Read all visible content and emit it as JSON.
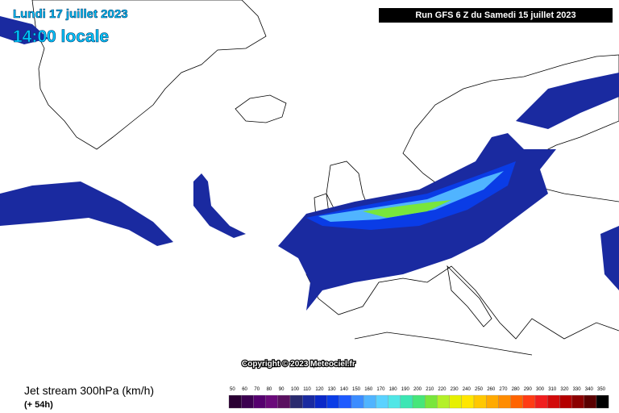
{
  "header": {
    "date": "Lundi 17 juillet 2023",
    "time": "14:00 locale",
    "run": "Run GFS 6 Z du Samedi 15 juillet 2023"
  },
  "copyright": "Copyright © 2023 Meteociel.fr",
  "legend": {
    "title": "Jet stream 300hPa (km/h)",
    "lead": "(+ 54h)",
    "scale": [
      {
        "label": "50",
        "color": "#2a0033"
      },
      {
        "label": "60",
        "color": "#3c0050"
      },
      {
        "label": "70",
        "color": "#55006e"
      },
      {
        "label": "80",
        "color": "#6a0a7a"
      },
      {
        "label": "90",
        "color": "#5a1060"
      },
      {
        "label": "100",
        "color": "#2a2a6e"
      },
      {
        "label": "110",
        "color": "#1a2aa0"
      },
      {
        "label": "120",
        "color": "#0a28c8"
      },
      {
        "label": "130",
        "color": "#0a3ce6"
      },
      {
        "label": "140",
        "color": "#1e5aff"
      },
      {
        "label": "150",
        "color": "#3c8cff"
      },
      {
        "label": "160",
        "color": "#50b4ff"
      },
      {
        "label": "170",
        "color": "#5ad2ff"
      },
      {
        "label": "180",
        "color": "#50e6e6"
      },
      {
        "label": "190",
        "color": "#3ce6b4"
      },
      {
        "label": "200",
        "color": "#46e67a"
      },
      {
        "label": "210",
        "color": "#78e63c"
      },
      {
        "label": "220",
        "color": "#b4f028"
      },
      {
        "label": "230",
        "color": "#e6f000"
      },
      {
        "label": "240",
        "color": "#ffe600"
      },
      {
        "label": "250",
        "color": "#ffc800"
      },
      {
        "label": "260",
        "color": "#ffaa00"
      },
      {
        "label": "270",
        "color": "#ff8c00"
      },
      {
        "label": "280",
        "color": "#ff6400"
      },
      {
        "label": "290",
        "color": "#ff3c14"
      },
      {
        "label": "300",
        "color": "#f01e1e"
      },
      {
        "label": "310",
        "color": "#d20a0a"
      },
      {
        "label": "320",
        "color": "#b40000"
      },
      {
        "label": "330",
        "color": "#8c0000"
      },
      {
        "label": "340",
        "color": "#5a0000"
      },
      {
        "label": "350",
        "color": "#000000"
      }
    ]
  }
}
